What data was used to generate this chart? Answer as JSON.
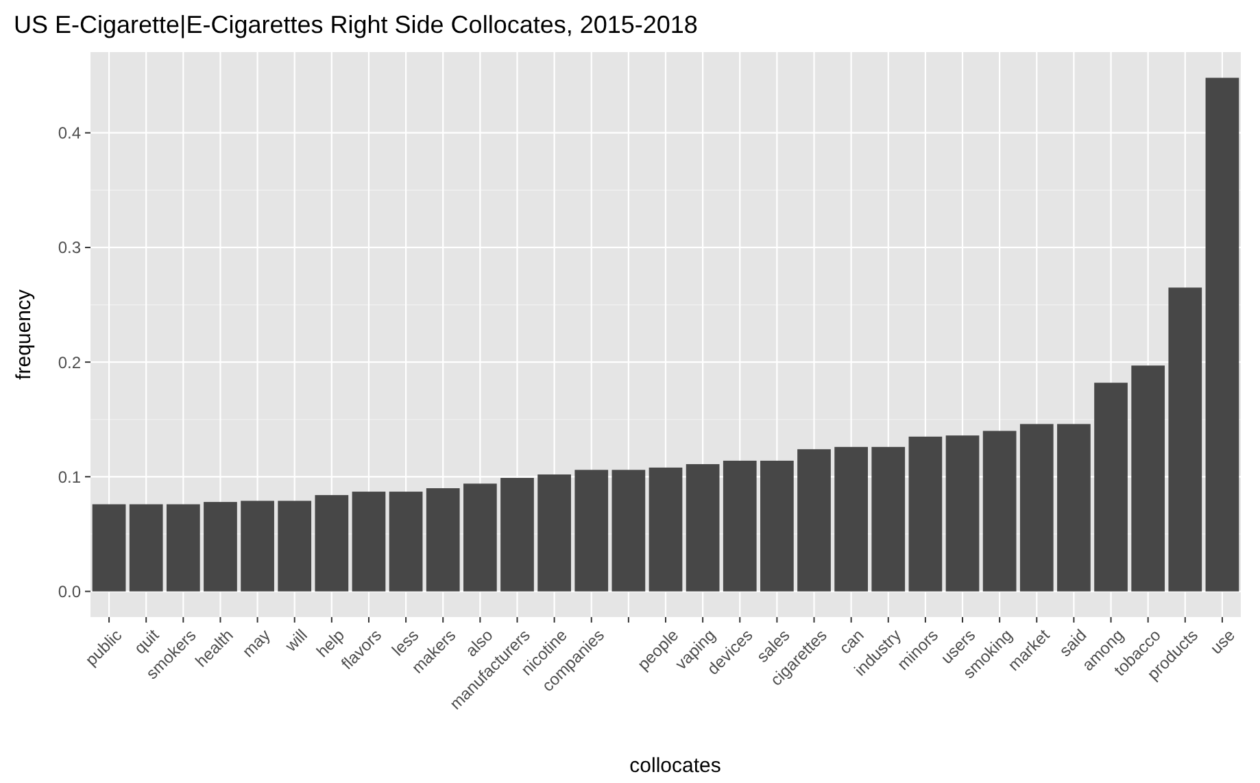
{
  "chart_data": {
    "type": "bar",
    "title": "US E-Cigarette|E-Cigarettes Right Side Collocates, 2015-2018",
    "xlabel": "collocates",
    "ylabel": "frequency",
    "categories": [
      "public",
      "quit",
      "smokers",
      "health",
      "may",
      "will",
      "help",
      "flavors",
      "less",
      "makers",
      "also",
      "manufacturers",
      "nicotine",
      "companies",
      null,
      "people",
      "vaping",
      "devices",
      "sales",
      "cigarettes",
      "can",
      "industry",
      "minors",
      "users",
      "smoking",
      "market",
      "said",
      "among",
      "tobacco",
      "products",
      "use"
    ],
    "values": [
      0.076,
      0.076,
      0.076,
      0.078,
      0.079,
      0.079,
      0.084,
      0.087,
      0.087,
      0.09,
      0.094,
      0.099,
      0.102,
      0.106,
      0.106,
      0.108,
      0.111,
      0.114,
      0.114,
      0.124,
      0.126,
      0.126,
      0.135,
      0.136,
      0.14,
      0.146,
      0.146,
      0.182,
      0.197,
      0.265,
      0.448
    ],
    "color": "#474747",
    "ylim": [
      -0.0224,
      0.4704
    ],
    "yticks": [
      {
        "value": 0,
        "label": "0.0"
      },
      {
        "value": 0.1,
        "label": "0.1"
      },
      {
        "value": 0.2,
        "label": "0.2"
      },
      {
        "value": 0.3,
        "label": "0.3"
      },
      {
        "value": 0.4,
        "label": "0.4"
      }
    ],
    "grid": true
  }
}
